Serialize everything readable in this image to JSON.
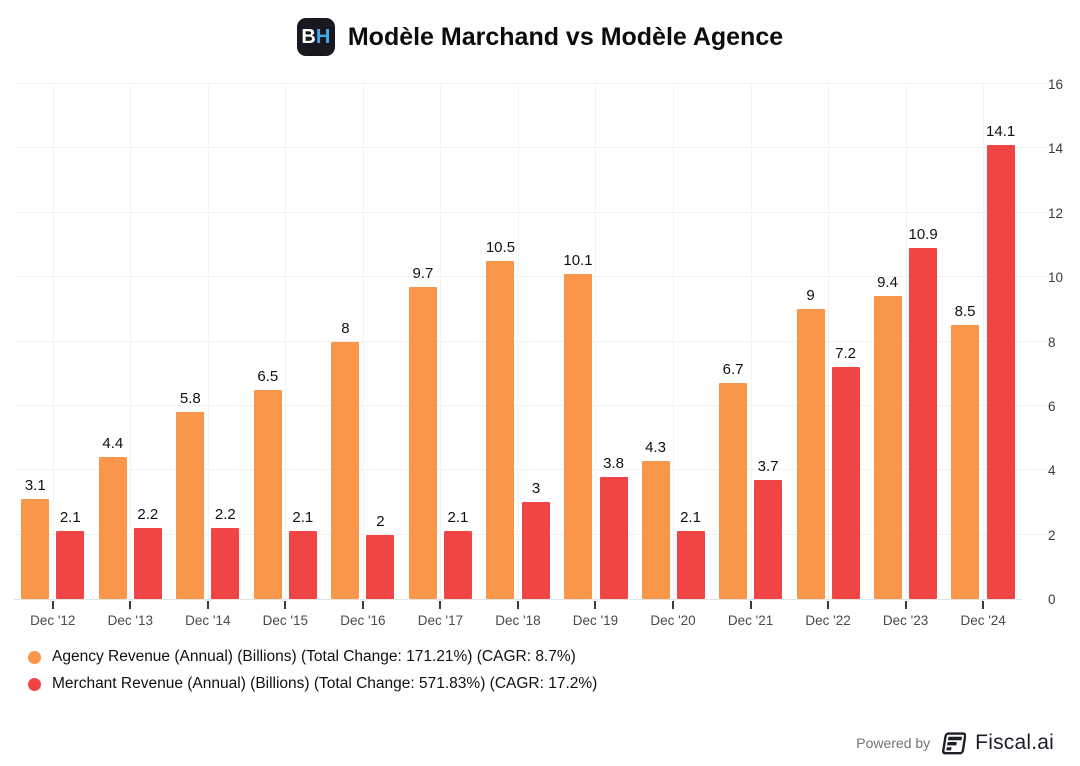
{
  "header": {
    "title": "Modèle Marchand vs Modèle Agence",
    "logo": {
      "b": "B",
      "h": "H"
    }
  },
  "chart_data": {
    "type": "bar",
    "categories": [
      "Dec '12",
      "Dec '13",
      "Dec '14",
      "Dec '15",
      "Dec '16",
      "Dec '17",
      "Dec '18",
      "Dec '19",
      "Dec '20",
      "Dec '21",
      "Dec '22",
      "Dec '23",
      "Dec '24"
    ],
    "series": [
      {
        "name": "Agency Revenue (Annual) (Billions) (Total Change: 171.21%) (CAGR: 8.7%)",
        "color": "#fa9649",
        "values": [
          3.1,
          4.4,
          5.8,
          6.5,
          8,
          9.7,
          10.5,
          10.1,
          4.3,
          6.7,
          9,
          9.4,
          8.5
        ],
        "labels": [
          "3.1",
          "4.4",
          "5.8",
          "6.5",
          "8",
          "9.7",
          "10.5",
          "10.1",
          "4.3",
          "6.7",
          "9",
          "9.4",
          "8.5"
        ]
      },
      {
        "name": "Merchant Revenue (Annual) (Billions) (Total Change: 571.83%) (CAGR: 17.2%)",
        "color": "#f14545",
        "values": [
          2.1,
          2.2,
          2.2,
          2.1,
          2,
          2.1,
          3,
          3.8,
          2.1,
          3.7,
          7.2,
          10.9,
          14.1
        ],
        "labels": [
          "2.1",
          "2.2",
          "2.2",
          "2.1",
          "2",
          "2.1",
          "3",
          "3.8",
          "2.1",
          "3.7",
          "7.2",
          "10.9",
          "14.1"
        ]
      }
    ],
    "ylim": [
      0,
      16
    ],
    "yticks": [
      0,
      2,
      4,
      6,
      8,
      10,
      12,
      14,
      16
    ],
    "grid": true,
    "legend_position": "bottom-left",
    "value_labels": true
  },
  "footer": {
    "powered_by": "Powered by",
    "brand": "Fiscal.ai"
  }
}
